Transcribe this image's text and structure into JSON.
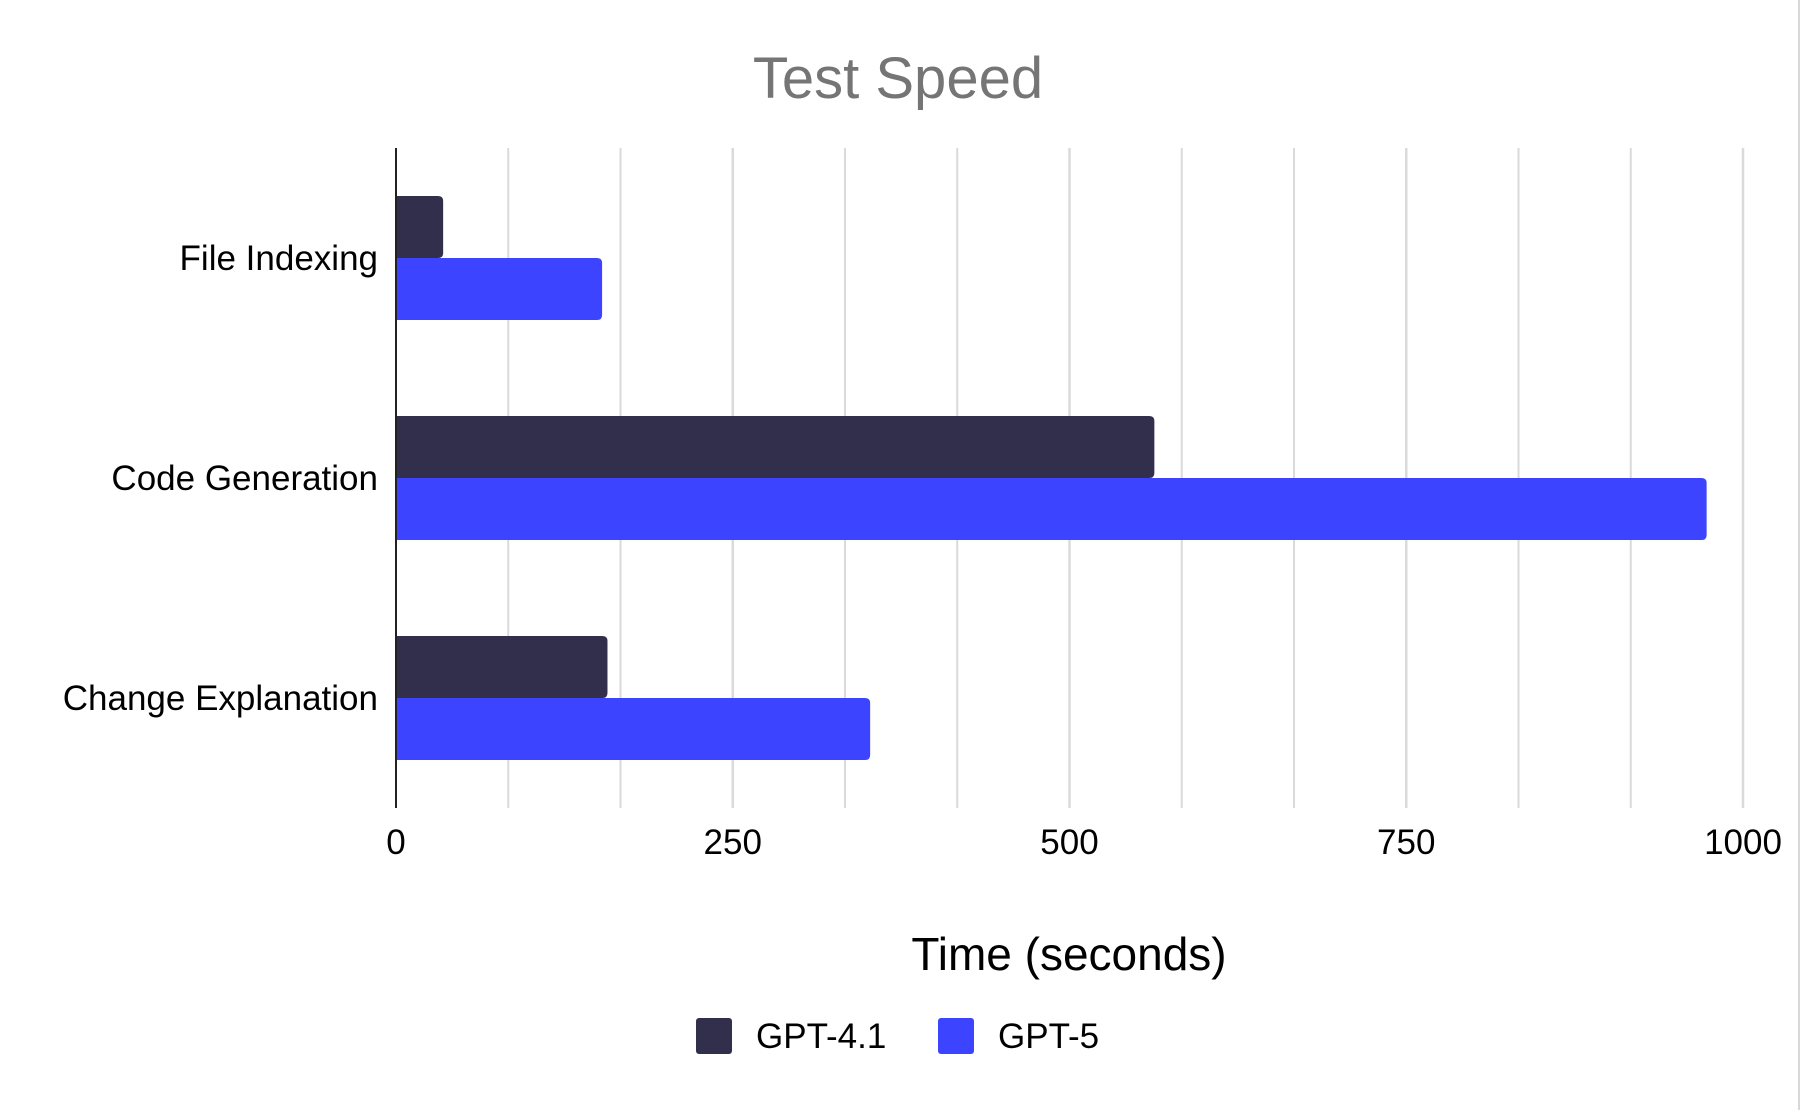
{
  "chart_data": {
    "type": "bar",
    "orientation": "horizontal",
    "title": "Test Speed",
    "xlabel": "Time (seconds)",
    "ylabel": "",
    "categories": [
      "File Indexing",
      "Code Generation",
      "Change Explanation"
    ],
    "series": [
      {
        "name": "GPT-4.1",
        "color": "#312f4c",
        "values": [
          35,
          563,
          157
        ]
      },
      {
        "name": "GPT-5",
        "color": "#3d44ff",
        "values": [
          153,
          973,
          352
        ]
      }
    ],
    "xlim": [
      0,
      1000
    ],
    "x_ticks": [
      "0",
      "250",
      "500",
      "750",
      "1000"
    ],
    "grid": "vertical",
    "legend_position": "bottom-center",
    "title_color": "#757575",
    "gridline_color": "#dadada",
    "axis_color": "#222222"
  }
}
